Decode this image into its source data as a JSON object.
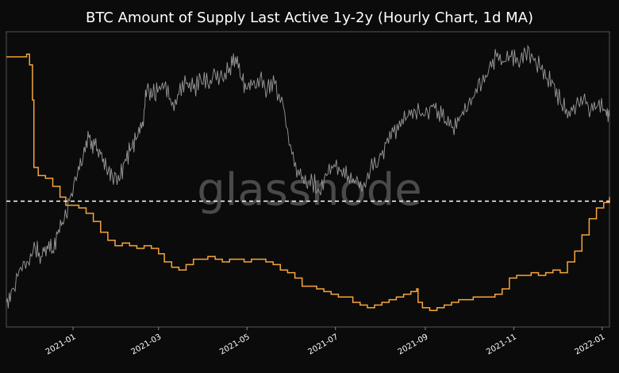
{
  "chart_data": {
    "type": "line",
    "title": "BTC Amount of Supply Last Active 1y-2y (Hourly Chart, 1d MA)",
    "watermark": "glassnode",
    "xlabel": "",
    "ylabel": "",
    "x_tick_labels": [
      "2021-01",
      "2021-03",
      "2021-05",
      "2021-07",
      "2021-09",
      "2021-11",
      "2022-01"
    ],
    "y_axis_note": "left-axis tick labels cropped (not legible)",
    "grid": false,
    "reference_line": {
      "style": "dashed",
      "color": "#ffffff",
      "level": 0.425
    },
    "series": [
      {
        "color": "#9a9a9a",
        "y_scale": "normalized 0-1 (axis unreadable)",
        "points": [
          [
            "2020-11-16",
            0.05
          ],
          [
            "2020-11-20",
            0.1
          ],
          [
            "2020-11-26",
            0.18
          ],
          [
            "2020-12-01",
            0.2
          ],
          [
            "2020-12-06",
            0.25
          ],
          [
            "2020-12-10",
            0.22
          ],
          [
            "2020-12-14",
            0.26
          ],
          [
            "2020-12-18",
            0.24
          ],
          [
            "2020-12-22",
            0.32
          ],
          [
            "2020-12-26",
            0.36
          ],
          [
            "2020-12-30",
            0.44
          ],
          [
            "2021-01-04",
            0.52
          ],
          [
            "2021-01-08",
            0.59
          ],
          [
            "2021-01-12",
            0.66
          ],
          [
            "2021-01-16",
            0.63
          ],
          [
            "2021-01-20",
            0.6
          ],
          [
            "2021-01-24",
            0.55
          ],
          [
            "2021-01-28",
            0.52
          ],
          [
            "2021-02-02",
            0.5
          ],
          [
            "2021-02-06",
            0.58
          ],
          [
            "2021-02-10",
            0.62
          ],
          [
            "2021-02-14",
            0.66
          ],
          [
            "2021-02-18",
            0.72
          ],
          [
            "2021-02-21",
            0.84
          ],
          [
            "2021-02-25",
            0.82
          ],
          [
            "2021-03-01",
            0.84
          ],
          [
            "2021-03-05",
            0.85
          ],
          [
            "2021-03-10",
            0.78
          ],
          [
            "2021-03-15",
            0.82
          ],
          [
            "2021-03-20",
            0.86
          ],
          [
            "2021-03-25",
            0.84
          ],
          [
            "2021-03-30",
            0.88
          ],
          [
            "2021-04-04",
            0.86
          ],
          [
            "2021-04-09",
            0.9
          ],
          [
            "2021-04-14",
            0.88
          ],
          [
            "2021-04-19",
            0.92
          ],
          [
            "2021-04-23",
            0.96
          ],
          [
            "2021-04-27",
            0.88
          ],
          [
            "2021-05-01",
            0.84
          ],
          [
            "2021-05-05",
            0.86
          ],
          [
            "2021-05-10",
            0.88
          ],
          [
            "2021-05-15",
            0.84
          ],
          [
            "2021-05-20",
            0.86
          ],
          [
            "2021-05-26",
            0.78
          ],
          [
            "2021-06-01",
            0.6
          ],
          [
            "2021-06-06",
            0.52
          ],
          [
            "2021-06-11",
            0.48
          ],
          [
            "2021-06-15",
            0.5
          ],
          [
            "2021-06-20",
            0.46
          ],
          [
            "2021-06-25",
            0.52
          ],
          [
            "2021-06-30",
            0.56
          ],
          [
            "2021-07-05",
            0.54
          ],
          [
            "2021-07-10",
            0.52
          ],
          [
            "2021-07-15",
            0.5
          ],
          [
            "2021-07-20",
            0.48
          ],
          [
            "2021-07-25",
            0.54
          ],
          [
            "2021-07-31",
            0.58
          ],
          [
            "2021-08-05",
            0.64
          ],
          [
            "2021-08-10",
            0.68
          ],
          [
            "2021-08-15",
            0.7
          ],
          [
            "2021-08-20",
            0.74
          ],
          [
            "2021-08-25",
            0.76
          ],
          [
            "2021-08-31",
            0.74
          ],
          [
            "2021-09-05",
            0.78
          ],
          [
            "2021-09-10",
            0.76
          ],
          [
            "2021-09-15",
            0.72
          ],
          [
            "2021-09-20",
            0.7
          ],
          [
            "2021-09-25",
            0.74
          ],
          [
            "2021-09-30",
            0.76
          ],
          [
            "2021-10-05",
            0.82
          ],
          [
            "2021-10-10",
            0.86
          ],
          [
            "2021-10-15",
            0.92
          ],
          [
            "2021-10-20",
            0.96
          ],
          [
            "2021-10-25",
            0.94
          ],
          [
            "2021-10-30",
            0.96
          ],
          [
            "2021-11-04",
            0.94
          ],
          [
            "2021-11-09",
            0.98
          ],
          [
            "2021-11-14",
            0.96
          ],
          [
            "2021-11-19",
            0.92
          ],
          [
            "2021-11-24",
            0.88
          ],
          [
            "2021-11-29",
            0.86
          ],
          [
            "2021-12-04",
            0.78
          ],
          [
            "2021-12-09",
            0.76
          ],
          [
            "2021-12-14",
            0.78
          ],
          [
            "2021-12-19",
            0.8
          ],
          [
            "2021-12-24",
            0.76
          ],
          [
            "2021-12-29",
            0.78
          ],
          [
            "2022-01-03",
            0.76
          ],
          [
            "2022-01-06",
            0.74
          ]
        ]
      },
      {
        "color": "#f7a43b",
        "y_scale": "normalized 0-1 (axis unreadable)",
        "points": [
          [
            "2020-11-16",
            0.96
          ],
          [
            "2020-11-25",
            0.96
          ],
          [
            "2020-11-30",
            0.97
          ],
          [
            "2020-12-02",
            0.93
          ],
          [
            "2020-12-04",
            0.8
          ],
          [
            "2020-12-05",
            0.55
          ],
          [
            "2020-12-08",
            0.52
          ],
          [
            "2020-12-13",
            0.51
          ],
          [
            "2020-12-18",
            0.48
          ],
          [
            "2020-12-23",
            0.44
          ],
          [
            "2020-12-27",
            0.41
          ],
          [
            "2021-01-05",
            0.4
          ],
          [
            "2021-01-10",
            0.38
          ],
          [
            "2021-01-15",
            0.35
          ],
          [
            "2021-01-20",
            0.31
          ],
          [
            "2021-01-25",
            0.28
          ],
          [
            "2021-01-30",
            0.26
          ],
          [
            "2021-02-04",
            0.27
          ],
          [
            "2021-02-09",
            0.26
          ],
          [
            "2021-02-14",
            0.25
          ],
          [
            "2021-02-19",
            0.26
          ],
          [
            "2021-02-24",
            0.25
          ],
          [
            "2021-03-01",
            0.23
          ],
          [
            "2021-03-05",
            0.2
          ],
          [
            "2021-03-10",
            0.18
          ],
          [
            "2021-03-15",
            0.17
          ],
          [
            "2021-03-20",
            0.19
          ],
          [
            "2021-03-25",
            0.21
          ],
          [
            "2021-03-30",
            0.21
          ],
          [
            "2021-04-04",
            0.22
          ],
          [
            "2021-04-09",
            0.21
          ],
          [
            "2021-04-14",
            0.2
          ],
          [
            "2021-04-19",
            0.21
          ],
          [
            "2021-04-24",
            0.21
          ],
          [
            "2021-04-29",
            0.2
          ],
          [
            "2021-05-04",
            0.21
          ],
          [
            "2021-05-09",
            0.21
          ],
          [
            "2021-05-14",
            0.2
          ],
          [
            "2021-05-19",
            0.19
          ],
          [
            "2021-05-24",
            0.17
          ],
          [
            "2021-05-29",
            0.16
          ],
          [
            "2021-06-03",
            0.14
          ],
          [
            "2021-06-08",
            0.11
          ],
          [
            "2021-06-13",
            0.11
          ],
          [
            "2021-06-18",
            0.1
          ],
          [
            "2021-06-23",
            0.09
          ],
          [
            "2021-06-28",
            0.08
          ],
          [
            "2021-07-03",
            0.07
          ],
          [
            "2021-07-08",
            0.07
          ],
          [
            "2021-07-13",
            0.05
          ],
          [
            "2021-07-18",
            0.04
          ],
          [
            "2021-07-23",
            0.03
          ],
          [
            "2021-07-28",
            0.04
          ],
          [
            "2021-08-02",
            0.05
          ],
          [
            "2021-08-07",
            0.06
          ],
          [
            "2021-08-12",
            0.07
          ],
          [
            "2021-08-17",
            0.08
          ],
          [
            "2021-08-22",
            0.09
          ],
          [
            "2021-08-26",
            0.1
          ],
          [
            "2021-08-27",
            0.05
          ],
          [
            "2021-08-30",
            0.03
          ],
          [
            "2021-09-04",
            0.02
          ],
          [
            "2021-09-09",
            0.03
          ],
          [
            "2021-09-14",
            0.04
          ],
          [
            "2021-09-19",
            0.05
          ],
          [
            "2021-09-24",
            0.06
          ],
          [
            "2021-09-29",
            0.06
          ],
          [
            "2021-10-04",
            0.07
          ],
          [
            "2021-10-09",
            0.07
          ],
          [
            "2021-10-14",
            0.07
          ],
          [
            "2021-10-19",
            0.08
          ],
          [
            "2021-10-24",
            0.1
          ],
          [
            "2021-10-29",
            0.14
          ],
          [
            "2021-11-03",
            0.15
          ],
          [
            "2021-11-08",
            0.15
          ],
          [
            "2021-11-13",
            0.16
          ],
          [
            "2021-11-18",
            0.15
          ],
          [
            "2021-11-23",
            0.16
          ],
          [
            "2021-11-28",
            0.17
          ],
          [
            "2021-12-03",
            0.16
          ],
          [
            "2021-12-08",
            0.2
          ],
          [
            "2021-12-13",
            0.24
          ],
          [
            "2021-12-18",
            0.3
          ],
          [
            "2021-12-23",
            0.36
          ],
          [
            "2021-12-28",
            0.4
          ],
          [
            "2022-01-02",
            0.42
          ],
          [
            "2022-01-06",
            0.44
          ]
        ]
      }
    ]
  }
}
